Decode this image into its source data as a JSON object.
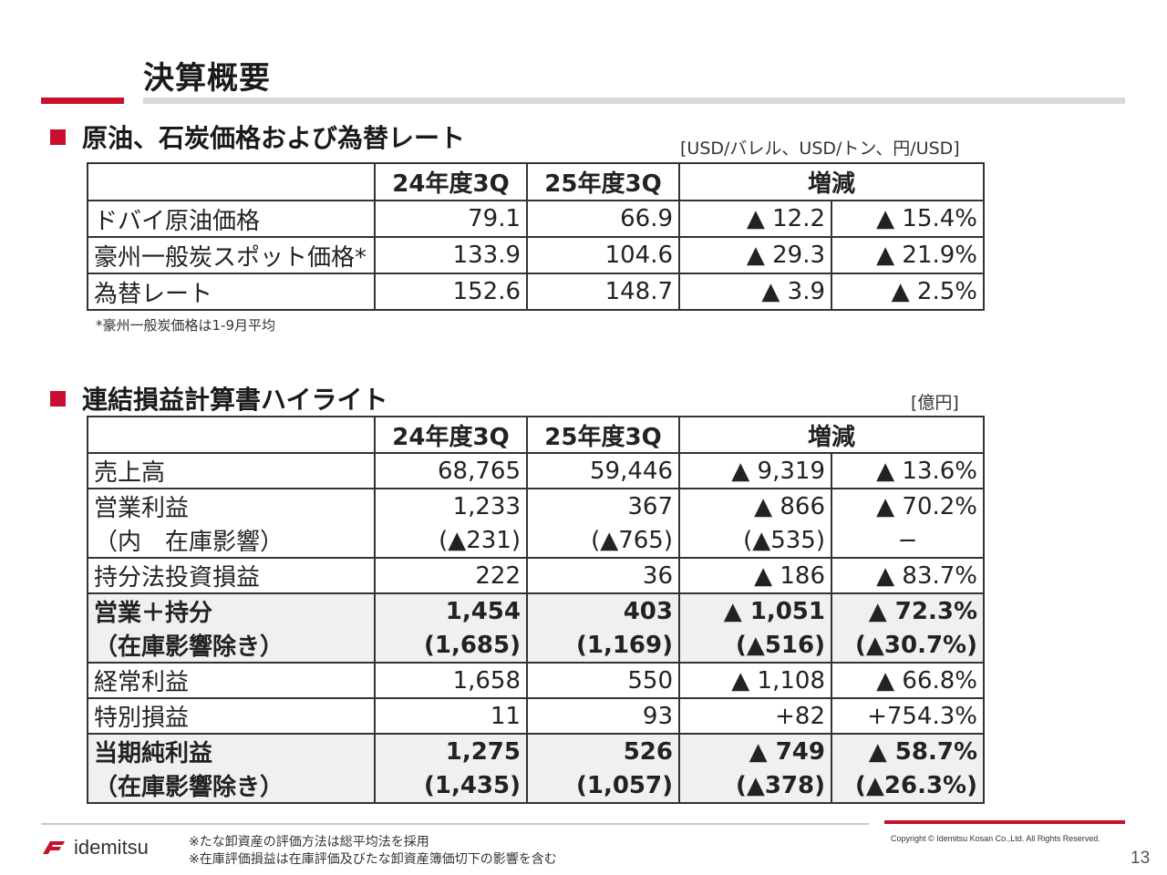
{
  "page": {
    "title": "決算概要",
    "page_number": "13",
    "brand_color": "#c8102e"
  },
  "section1": {
    "heading": "原油、石炭価格および為替レート",
    "unit": "[USD/バレル、USD/トン、円/USD]",
    "headers": [
      "24年度3Q",
      "25年度3Q",
      "増減"
    ],
    "rows": [
      {
        "label": "ドバイ原油価格",
        "v24": "79.1",
        "v25": "66.9",
        "diff": "▲ 12.2",
        "pct": "▲ 15.4%"
      },
      {
        "label": "豪州一般炭スポット価格*",
        "v24": "133.9",
        "v25": "104.6",
        "diff": "▲ 29.3",
        "pct": "▲ 21.9%"
      },
      {
        "label": "為替レート",
        "v24": "152.6",
        "v25": "148.7",
        "diff": "▲ 3.9",
        "pct": "▲ 2.5%"
      }
    ],
    "note": "*豪州一般炭価格は1-9月平均"
  },
  "section2": {
    "heading": "連結損益計算書ハイライト",
    "unit": "[億円]",
    "headers": [
      "24年度3Q",
      "25年度3Q",
      "増減"
    ],
    "rows": [
      {
        "label": "売上高",
        "v24": "68,765",
        "v25": "59,446",
        "diff": "▲ 9,319",
        "pct": "▲ 13.6%"
      },
      {
        "label": "営業利益",
        "v24": "1,233",
        "v25": "367",
        "diff": "▲ 866",
        "pct": "▲ 70.2%"
      },
      {
        "label": "（内　在庫影響）",
        "v24": "(▲231)",
        "v25": "(▲765)",
        "diff": "(▲535)",
        "pct": "−"
      },
      {
        "label": "持分法投資損益",
        "v24": "222",
        "v25": "36",
        "diff": "▲ 186",
        "pct": "▲ 83.7%"
      },
      {
        "label": "営業＋持分",
        "v24": "1,454",
        "v25": "403",
        "diff": "▲ 1,051",
        "pct": "▲ 72.3%"
      },
      {
        "label": "（在庫影響除き）",
        "v24": "(1,685)",
        "v25": "(1,169)",
        "diff": "(▲516)",
        "pct": "(▲30.7%)"
      },
      {
        "label": "経常利益",
        "v24": "1,658",
        "v25": "550",
        "diff": "▲ 1,108",
        "pct": "▲ 66.8%"
      },
      {
        "label": "特別損益",
        "v24": "11",
        "v25": "93",
        "diff": "+82",
        "pct": "+754.3%"
      },
      {
        "label": "当期純利益",
        "v24": "1,275",
        "v25": "526",
        "diff": "▲ 749",
        "pct": "▲ 58.7%"
      },
      {
        "label": "（在庫影響除き）",
        "v24": "(1,435)",
        "v25": "(1,057)",
        "diff": "(▲378)",
        "pct": "(▲26.3%)"
      }
    ]
  },
  "footer": {
    "logo_text": "idemitsu",
    "note1": "※たな卸資産の評価方法は総平均法を採用",
    "note2": "※在庫評価損益は在庫評価及びたな卸資産簿価切下の影響を含む",
    "copyright": "Copyright © Idemitsu Kosan Co.,Ltd.  All Rights Reserved."
  }
}
